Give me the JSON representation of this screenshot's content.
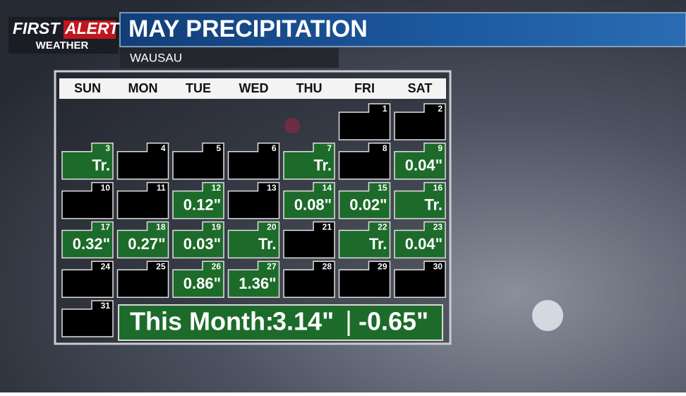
{
  "brand": {
    "first": "FIRST",
    "alert": "ALERT",
    "sub": "WEATHER"
  },
  "header": {
    "title": "MAY PRECIPITATION",
    "location": "WAUSAU"
  },
  "calendar": {
    "weekdays": [
      "SUN",
      "MON",
      "TUE",
      "WED",
      "THU",
      "FRI",
      "SAT"
    ],
    "weeks": [
      [
        {
          "day": 1
        },
        {
          "day": 2
        }
      ],
      [
        {
          "day": 3,
          "amount": "Tr."
        },
        {
          "day": 4
        },
        {
          "day": 5
        },
        {
          "day": 6
        },
        {
          "day": 7,
          "amount": "Tr."
        },
        {
          "day": 8
        },
        {
          "day": 9,
          "amount": "0.04\""
        }
      ],
      [
        {
          "day": 10
        },
        {
          "day": 11
        },
        {
          "day": 12,
          "amount": "0.12\""
        },
        {
          "day": 13
        },
        {
          "day": 14,
          "amount": "0.08\""
        },
        {
          "day": 15,
          "amount": "0.02\""
        },
        {
          "day": 16,
          "amount": "Tr."
        }
      ],
      [
        {
          "day": 17,
          "amount": "0.32\""
        },
        {
          "day": 18,
          "amount": "0.27\""
        },
        {
          "day": 19,
          "amount": "0.03\""
        },
        {
          "day": 20,
          "amount": "Tr."
        },
        {
          "day": 21
        },
        {
          "day": 22,
          "amount": "Tr."
        },
        {
          "day": 23,
          "amount": "0.04\""
        }
      ],
      [
        {
          "day": 24
        },
        {
          "day": 25
        },
        {
          "day": 26,
          "amount": "0.86\""
        },
        {
          "day": 27,
          "amount": "1.36\""
        },
        {
          "day": 28
        },
        {
          "day": 29
        },
        {
          "day": 30
        }
      ],
      [
        {
          "day": 31
        }
      ]
    ]
  },
  "summary": {
    "label": "This Month:",
    "total": "3.14\"",
    "departure": "-0.65\""
  }
}
